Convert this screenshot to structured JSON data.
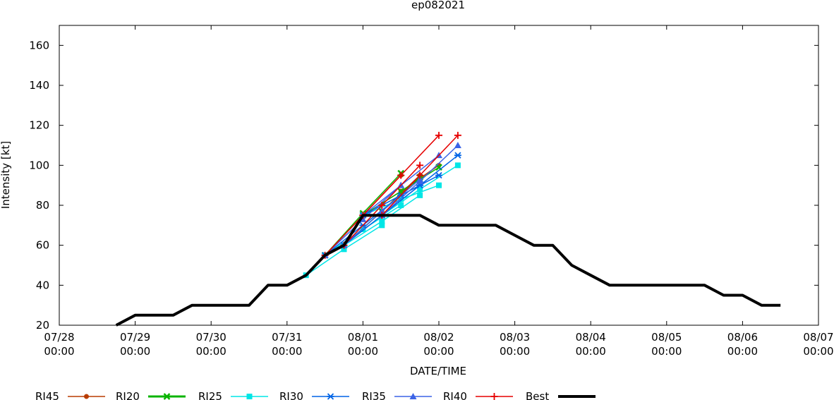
{
  "chart_data": {
    "type": "line",
    "title": "ep082021",
    "xlabel": "DATE/TIME",
    "ylabel": "Intensity [kt]",
    "ylim": [
      20,
      170
    ],
    "yticks": [
      20,
      40,
      60,
      80,
      100,
      120,
      140,
      160
    ],
    "xlim": [
      "07/28 00:00",
      "08/07 00:00"
    ],
    "xticks": [
      {
        "date": "07/28 00:00",
        "l1": "07/28",
        "l2": "00:00"
      },
      {
        "date": "07/29 00:00",
        "l1": "07/29",
        "l2": "00:00"
      },
      {
        "date": "07/30 00:00",
        "l1": "07/30",
        "l2": "00:00"
      },
      {
        "date": "07/31 00:00",
        "l1": "07/31",
        "l2": "00:00"
      },
      {
        "date": "08/01 00:00",
        "l1": "08/01",
        "l2": "00:00"
      },
      {
        "date": "08/02 00:00",
        "l1": "08/02",
        "l2": "00:00"
      },
      {
        "date": "08/03 00:00",
        "l1": "08/03",
        "l2": "00:00"
      },
      {
        "date": "08/04 00:00",
        "l1": "08/04",
        "l2": "00:00"
      },
      {
        "date": "08/05 00:00",
        "l1": "08/05",
        "l2": "00:00"
      },
      {
        "date": "08/06 00:00",
        "l1": "08/06",
        "l2": "00:00"
      },
      {
        "date": "08/07 00:00",
        "l1": "08/07",
        "l2": "00:00"
      }
    ],
    "grid": false,
    "legend": "bottom",
    "legend_order": [
      "RI45",
      "RI20",
      "RI25",
      "RI30",
      "RI35",
      "RI40",
      "Best"
    ],
    "styles": {
      "RI45": {
        "color": "#b83c00",
        "marker": "circle"
      },
      "RI20": {
        "color": "#0ab400",
        "marker": "x"
      },
      "RI25": {
        "color": "#00e6e6",
        "marker": "square"
      },
      "RI30": {
        "color": "#0064e6",
        "marker": "star"
      },
      "RI35": {
        "color": "#3c64e6",
        "marker": "triangle"
      },
      "RI40": {
        "color": "#e60000",
        "marker": "plus"
      },
      "Best": {
        "color": "#000000",
        "marker": "none"
      }
    },
    "best_track": {
      "name": "Best",
      "x": [
        "07/28 18:00",
        "07/29 00:00",
        "07/29 06:00",
        "07/29 12:00",
        "07/29 18:00",
        "07/30 00:00",
        "07/30 06:00",
        "07/30 12:00",
        "07/30 18:00",
        "07/31 00:00",
        "07/31 06:00",
        "07/31 12:00",
        "07/31 18:00",
        "08/01 00:00",
        "08/01 06:00",
        "08/01 12:00",
        "08/01 18:00",
        "08/02 00:00",
        "08/02 06:00",
        "08/02 12:00",
        "08/02 18:00",
        "08/03 00:00",
        "08/03 06:00",
        "08/03 12:00",
        "08/03 18:00",
        "08/04 00:00",
        "08/04 06:00",
        "08/04 12:00",
        "08/04 18:00",
        "08/05 00:00",
        "08/05 06:00",
        "08/05 12:00",
        "08/05 18:00",
        "08/06 00:00",
        "08/06 06:00",
        "08/06 12:00"
      ],
      "values": [
        20,
        25,
        25,
        25,
        30,
        30,
        30,
        30,
        40,
        40,
        45,
        55,
        60,
        75,
        75,
        75,
        75,
        70,
        70,
        70,
        70,
        65,
        60,
        60,
        50,
        45,
        40,
        40,
        40,
        40,
        40,
        40,
        35,
        35,
        30,
        30
      ]
    },
    "forecasts": [
      {
        "name": "RI45",
        "x": [
          "07/31 12:00",
          "08/01 00:00",
          "08/01 12:00"
        ],
        "values": [
          55,
          75,
          95
        ]
      },
      {
        "name": "RI45",
        "x": [
          "07/31 18:00",
          "08/01 06:00",
          "08/01 18:00"
        ],
        "values": [
          60,
          77,
          95
        ]
      },
      {
        "name": "RI45",
        "x": [
          "08/01 00:00",
          "08/01 12:00",
          "08/02 00:00"
        ],
        "values": [
          75,
          87,
          100
        ]
      },
      {
        "name": "RI20",
        "x": [
          "07/31 12:00",
          "08/01 00:00",
          "08/01 12:00"
        ],
        "values": [
          55,
          76,
          96
        ]
      },
      {
        "name": "RI20",
        "x": [
          "07/31 18:00",
          "08/01 06:00",
          "08/01 18:00"
        ],
        "values": [
          60,
          77,
          94
        ]
      },
      {
        "name": "RI20",
        "x": [
          "08/01 00:00",
          "08/01 12:00",
          "08/02 00:00"
        ],
        "values": [
          75,
          87,
          99
        ]
      },
      {
        "name": "RI25",
        "x": [
          "07/31 06:00",
          "07/31 18:00",
          "08/01 06:00"
        ],
        "values": [
          45,
          58,
          70
        ]
      },
      {
        "name": "RI25",
        "x": [
          "07/31 12:00",
          "08/01 00:00",
          "08/01 12:00"
        ],
        "values": [
          55,
          68,
          80
        ]
      },
      {
        "name": "RI25",
        "x": [
          "07/31 18:00",
          "08/01 06:00",
          "08/01 18:00"
        ],
        "values": [
          60,
          72,
          85
        ]
      },
      {
        "name": "RI25",
        "x": [
          "08/01 00:00",
          "08/01 12:00",
          "08/02 00:00"
        ],
        "values": [
          75,
          83,
          90
        ]
      },
      {
        "name": "RI25",
        "x": [
          "08/01 06:00",
          "08/01 18:00",
          "08/02 06:00"
        ],
        "values": [
          75,
          88,
          100
        ]
      },
      {
        "name": "RI30",
        "x": [
          "07/31 12:00",
          "08/01 00:00",
          "08/01 12:00"
        ],
        "values": [
          55,
          70,
          85
        ]
      },
      {
        "name": "RI30",
        "x": [
          "07/31 18:00",
          "08/01 06:00",
          "08/01 18:00"
        ],
        "values": [
          60,
          75,
          90
        ]
      },
      {
        "name": "RI30",
        "x": [
          "08/01 00:00",
          "08/01 12:00",
          "08/02 00:00"
        ],
        "values": [
          75,
          85,
          95
        ]
      },
      {
        "name": "RI30",
        "x": [
          "08/01 06:00",
          "08/01 18:00",
          "08/02 06:00"
        ],
        "values": [
          75,
          90,
          105
        ]
      },
      {
        "name": "RI35",
        "x": [
          "07/31 12:00",
          "08/01 00:00",
          "08/01 12:00"
        ],
        "values": [
          55,
          73,
          90
        ]
      },
      {
        "name": "RI35",
        "x": [
          "07/31 18:00",
          "08/01 06:00",
          "08/01 18:00"
        ],
        "values": [
          60,
          77,
          93
        ]
      },
      {
        "name": "RI35",
        "x": [
          "08/01 00:00",
          "08/01 12:00",
          "08/02 00:00"
        ],
        "values": [
          75,
          90,
          105
        ]
      },
      {
        "name": "RI35",
        "x": [
          "08/01 06:00",
          "08/01 18:00",
          "08/02 06:00"
        ],
        "values": [
          75,
          92,
          110
        ]
      },
      {
        "name": "RI40",
        "x": [
          "07/31 12:00",
          "08/01 00:00",
          "08/01 12:00"
        ],
        "values": [
          55,
          75,
          95
        ]
      },
      {
        "name": "RI40",
        "x": [
          "07/31 18:00",
          "08/01 06:00",
          "08/01 18:00"
        ],
        "values": [
          60,
          80,
          100
        ]
      },
      {
        "name": "RI40",
        "x": [
          "08/01 00:00",
          "08/01 12:00",
          "08/02 00:00"
        ],
        "values": [
          75,
          95,
          115
        ]
      },
      {
        "name": "RI40",
        "x": [
          "08/01 06:00",
          "08/01 18:00",
          "08/02 06:00"
        ],
        "values": [
          75,
          95,
          115
        ]
      }
    ]
  }
}
